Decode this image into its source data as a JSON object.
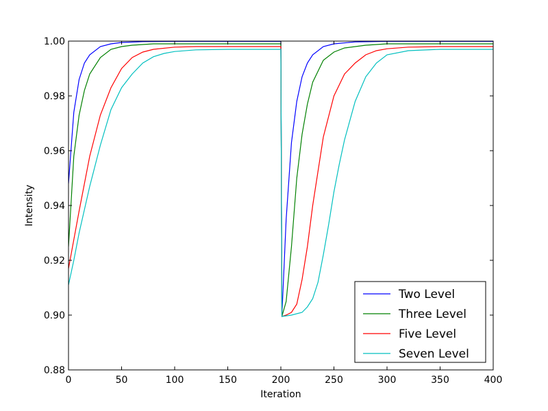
{
  "chart_data": {
    "type": "line",
    "title": "",
    "xlabel": "Iteration",
    "ylabel": "Intensity",
    "xlim": [
      0,
      400
    ],
    "ylim": [
      0.88,
      1.0
    ],
    "x_ticks": [
      0,
      50,
      100,
      150,
      200,
      250,
      300,
      350,
      400
    ],
    "x_tick_labels": [
      "0",
      "50",
      "100",
      "150",
      "200",
      "250",
      "300",
      "350",
      "400"
    ],
    "y_ticks": [
      0.88,
      0.9,
      0.92,
      0.94,
      0.96,
      0.98,
      1.0
    ],
    "y_tick_labels": [
      "0.88",
      "0.90",
      "0.92",
      "0.94",
      "0.96",
      "0.98",
      "1.00"
    ],
    "grid": false,
    "legend_position": "lower-right",
    "series": [
      {
        "name": "Two Level",
        "color": "#0000ff",
        "x": [
          0,
          5,
          10,
          15,
          20,
          30,
          40,
          50,
          70,
          100,
          150,
          199,
          200,
          201,
          205,
          210,
          215,
          220,
          225,
          230,
          240,
          250,
          270,
          300,
          350,
          400
        ],
        "y": [
          0.948,
          0.974,
          0.986,
          0.992,
          0.995,
          0.998,
          0.999,
          0.9995,
          0.9998,
          0.9999,
          0.9999,
          0.9999,
          0.9999,
          0.9,
          0.935,
          0.963,
          0.978,
          0.987,
          0.992,
          0.995,
          0.998,
          0.999,
          0.9997,
          0.9999,
          0.9999,
          0.9999
        ]
      },
      {
        "name": "Three Level",
        "color": "#008000",
        "x": [
          0,
          5,
          10,
          15,
          20,
          30,
          40,
          50,
          60,
          80,
          100,
          150,
          199,
          200,
          201,
          205,
          210,
          215,
          220,
          225,
          230,
          240,
          250,
          260,
          280,
          300,
          350,
          400
        ],
        "y": [
          0.925,
          0.958,
          0.973,
          0.982,
          0.988,
          0.994,
          0.997,
          0.998,
          0.9985,
          0.999,
          0.999,
          0.999,
          0.999,
          0.999,
          0.8995,
          0.905,
          0.925,
          0.95,
          0.966,
          0.977,
          0.985,
          0.993,
          0.996,
          0.9975,
          0.9985,
          0.999,
          0.999,
          0.999
        ]
      },
      {
        "name": "Five Level",
        "color": "#ff0000",
        "x": [
          0,
          10,
          20,
          30,
          40,
          50,
          60,
          70,
          80,
          100,
          120,
          150,
          199,
          200,
          201,
          205,
          210,
          215,
          220,
          225,
          230,
          240,
          250,
          260,
          270,
          280,
          290,
          300,
          320,
          350,
          400
        ],
        "y": [
          0.917,
          0.938,
          0.958,
          0.973,
          0.983,
          0.99,
          0.994,
          0.996,
          0.997,
          0.9978,
          0.998,
          0.998,
          0.998,
          0.998,
          0.8995,
          0.9,
          0.901,
          0.904,
          0.913,
          0.925,
          0.94,
          0.965,
          0.98,
          0.988,
          0.992,
          0.995,
          0.9965,
          0.9972,
          0.9978,
          0.998,
          0.998
        ]
      },
      {
        "name": "Seven Level",
        "color": "#00bfbf",
        "x": [
          0,
          5,
          10,
          20,
          30,
          40,
          50,
          60,
          70,
          80,
          90,
          100,
          120,
          150,
          199,
          200,
          201,
          210,
          220,
          225,
          230,
          235,
          240,
          245,
          250,
          255,
          260,
          270,
          280,
          290,
          300,
          320,
          350,
          400
        ],
        "y": [
          0.911,
          0.92,
          0.93,
          0.947,
          0.962,
          0.975,
          0.983,
          0.988,
          0.992,
          0.9943,
          0.9955,
          0.9962,
          0.9968,
          0.997,
          0.997,
          0.997,
          0.8995,
          0.9,
          0.901,
          0.903,
          0.906,
          0.912,
          0.922,
          0.933,
          0.945,
          0.955,
          0.964,
          0.978,
          0.987,
          0.992,
          0.995,
          0.9965,
          0.997,
          0.997
        ]
      }
    ]
  }
}
